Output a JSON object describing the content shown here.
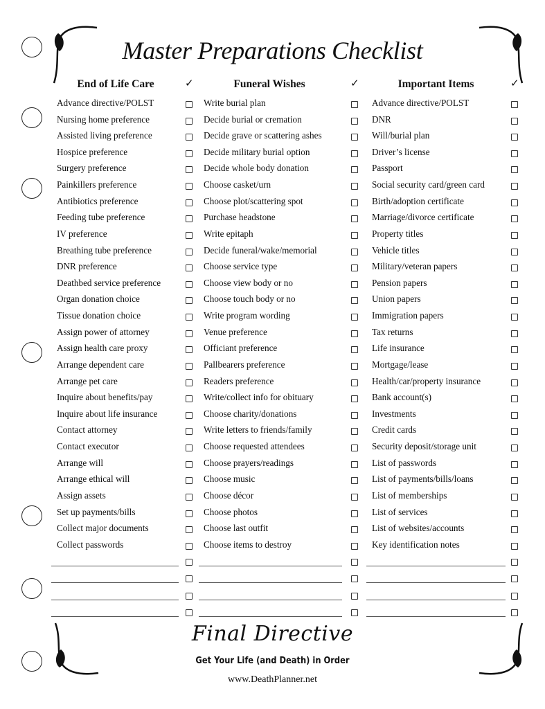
{
  "title": "Master Preparations Checklist",
  "check_mark": "✓",
  "columns": [
    {
      "heading": "End of Life Care",
      "items": [
        "Advance directive/POLST",
        "Nursing home preference",
        "Assisted living preference",
        "Hospice preference",
        "Surgery preference",
        "Painkillers preference",
        "Antibiotics preference",
        "Feeding tube preference",
        "IV preference",
        "Breathing tube preference",
        "DNR preference",
        "Deathbed service preference",
        "Organ donation choice",
        "Tissue donation choice",
        "Assign power of attorney",
        "Assign health care proxy",
        "Arrange dependent care",
        "Arrange pet care",
        "Inquire about benefits/pay",
        "Inquire about life insurance",
        "Contact attorney",
        "Contact executor",
        "Arrange will",
        "Arrange ethical will",
        "Assign assets",
        "Set up payments/bills",
        "Collect major documents",
        "Collect passwords"
      ]
    },
    {
      "heading": "Funeral Wishes",
      "items": [
        "Write burial plan",
        "Decide burial or cremation",
        "Decide grave or scattering ashes",
        "Decide military burial option",
        "Decide whole body donation",
        "Choose casket/urn",
        "Choose plot/scattering spot",
        "Purchase headstone",
        "Write epitaph",
        "Decide funeral/wake/memorial",
        "Choose service type",
        "Choose view body or no",
        "Choose touch body or no",
        "Write program wording",
        "Venue preference",
        "Officiant preference",
        "Pallbearers preference",
        "Readers preference",
        "Write/collect info for obituary",
        "Choose charity/donations",
        "Write letters to friends/family",
        "Choose requested attendees",
        "Choose prayers/readings",
        "Choose music",
        "Choose décor",
        "Choose photos",
        "Choose last outfit",
        "Choose items to destroy"
      ]
    },
    {
      "heading": "Important Items",
      "items": [
        "Advance directive/POLST",
        "DNR",
        "Will/burial plan",
        "Driver’s license",
        "Passport",
        "Social security card/green card",
        "Birth/adoption certificate",
        "Marriage/divorce certificate",
        "Property titles",
        "Vehicle titles",
        "Military/veteran papers",
        "Pension papers",
        "Union papers",
        "Immigration papers",
        "Tax returns",
        "Life insurance",
        "Mortgage/lease",
        "Health/car/property insurance",
        "Bank account(s)",
        "Investments",
        "Credit cards",
        "Security deposit/storage unit",
        "List of passwords",
        "List of payments/bills/loans",
        "List of memberships",
        "List of services",
        "List of websites/accounts",
        "Key identification notes"
      ]
    }
  ],
  "footer": {
    "brand": "Final Directive",
    "tagline": "Get Your Life (and Death) in Order",
    "url": "www.DeathPlanner.net"
  }
}
